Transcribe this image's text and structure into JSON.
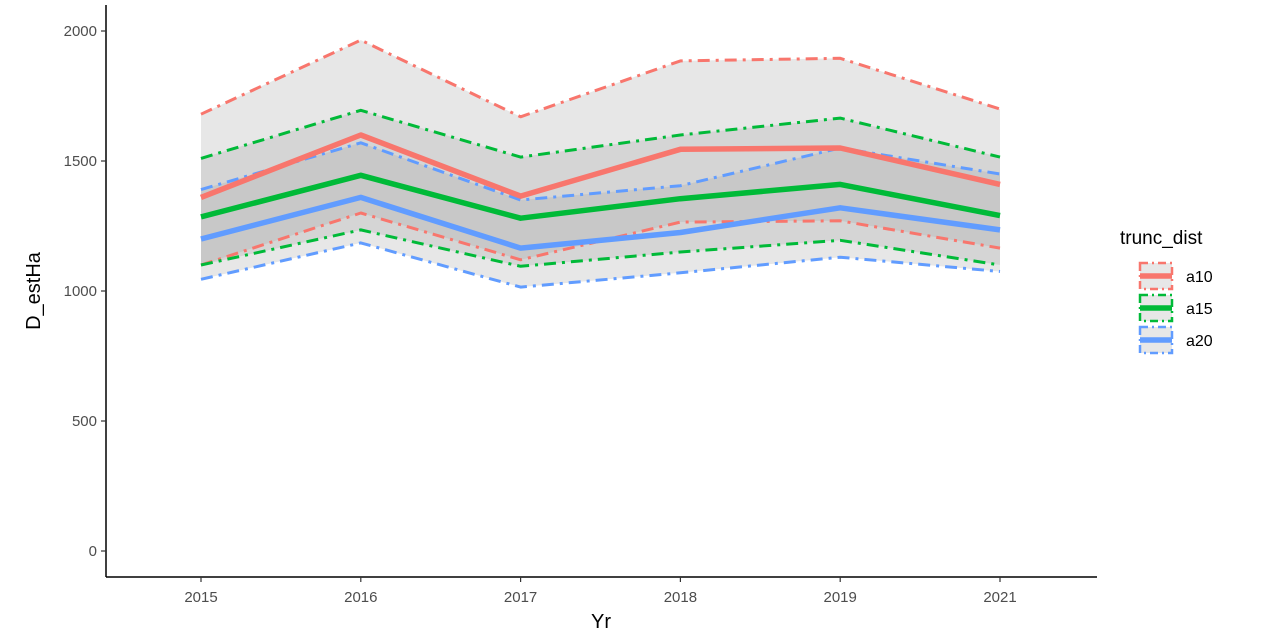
{
  "chart_data": {
    "type": "line",
    "xlabel": "Yr",
    "ylabel": "D_estHa",
    "x": [
      2015,
      2016,
      2017,
      2018,
      2019,
      2021
    ],
    "x_tick_labels": [
      "2015",
      "2016",
      "2017",
      "2018",
      "2019",
      "2021"
    ],
    "ylim": [
      -100,
      2100
    ],
    "y_ticks": [
      0,
      500,
      1000,
      1500,
      2000
    ],
    "y_tick_labels": [
      "0",
      "500",
      "1000",
      "1500",
      "2000"
    ],
    "grid": false,
    "legend": {
      "title": "trunc_dist",
      "placement": "right"
    },
    "series": [
      {
        "name": "a10",
        "color": "#F8766D",
        "values": [
          1360,
          1600,
          1365,
          1545,
          1550,
          1410
        ],
        "upper": [
          1680,
          1965,
          1670,
          1885,
          1895,
          1700
        ],
        "lower": [
          1100,
          1300,
          1120,
          1265,
          1270,
          1165
        ]
      },
      {
        "name": "a15",
        "color": "#00BA38",
        "values": [
          1285,
          1445,
          1280,
          1355,
          1410,
          1290
        ],
        "upper": [
          1510,
          1695,
          1515,
          1600,
          1665,
          1515
        ],
        "lower": [
          1100,
          1235,
          1095,
          1150,
          1195,
          1100
        ]
      },
      {
        "name": "a20",
        "color": "#619CFF",
        "values": [
          1200,
          1360,
          1165,
          1225,
          1320,
          1235
        ],
        "upper": [
          1390,
          1570,
          1350,
          1405,
          1550,
          1450
        ],
        "lower": [
          1045,
          1185,
          1015,
          1070,
          1130,
          1075
        ]
      }
    ]
  }
}
